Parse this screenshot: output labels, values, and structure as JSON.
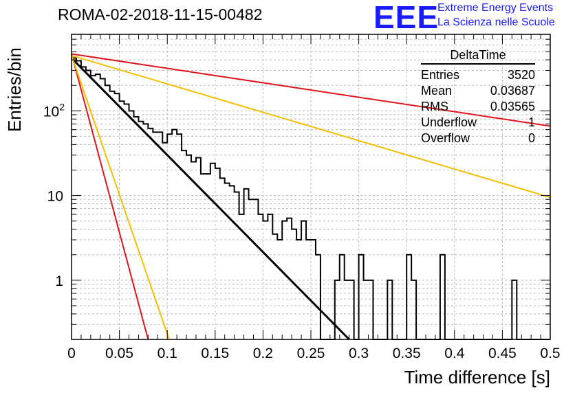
{
  "title": "ROMA-02-2018-11-15-00482",
  "logo": {
    "mark": "EEE",
    "line1": "Extreme Energy Events",
    "line2": "La Scienza nelle Scuole"
  },
  "colors": {
    "red": "#e0141a",
    "orange": "#f5be00",
    "black": "#000000",
    "logo": "#1a1aff"
  },
  "stats": {
    "name": "DeltaTime",
    "rows": [
      {
        "label": "Entries",
        "value": "3520"
      },
      {
        "label": "Mean",
        "value": "0.03687"
      },
      {
        "label": "RMS",
        "value": "0.03565"
      },
      {
        "label": "Underflow",
        "value": "1"
      },
      {
        "label": "Overflow",
        "value": "0"
      }
    ]
  },
  "chart_data": {
    "type": "line",
    "xlabel": "Time difference [s]",
    "ylabel": "Entries/bin",
    "xlim": [
      0,
      0.5
    ],
    "ylim": [
      0.2,
      800
    ],
    "log_y": true,
    "grid": true,
    "x_tick_labels": [
      "0",
      "0.05",
      "0.1",
      "0.15",
      "0.2",
      "0.25",
      "0.3",
      "0.35",
      "0.4",
      "0.45",
      "0.5"
    ],
    "y_tick_labels": [
      {
        "value": 1,
        "label": "1"
      },
      {
        "value": 10,
        "label": "10"
      },
      {
        "value": 100,
        "label": "10^2"
      }
    ],
    "histogram": {
      "bin_width": 0.005,
      "values": [
        420,
        390,
        330,
        300,
        260,
        270,
        240,
        200,
        170,
        160,
        130,
        120,
        100,
        85,
        75,
        70,
        62,
        56,
        56,
        42,
        53,
        60,
        53,
        34,
        30,
        25,
        28,
        18,
        18,
        24,
        21,
        16,
        14,
        13,
        11,
        6,
        12,
        9,
        9,
        6,
        5,
        6,
        3.5,
        3,
        5,
        5.4,
        4,
        3,
        5,
        3,
        3,
        2,
        0,
        0,
        0,
        1,
        2,
        1,
        1,
        0,
        2,
        1,
        1,
        0,
        0,
        0,
        1,
        0,
        0,
        0,
        2,
        1,
        0,
        0,
        0,
        0,
        0,
        2,
        0,
        0,
        0,
        0,
        0,
        0,
        0,
        0,
        0,
        0,
        0,
        0,
        0,
        0,
        1,
        0,
        0,
        0,
        0,
        0,
        0,
        0
      ]
    },
    "series": [
      {
        "color": "black",
        "x": [
          0.0,
          0.29
        ],
        "y": [
          420,
          0.2
        ]
      },
      {
        "color": "red",
        "x": [
          0.0,
          0.5
        ],
        "y": [
          470,
          66
        ]
      },
      {
        "color": "red",
        "x": [
          0.0,
          0.08
        ],
        "y": [
          470,
          0.2
        ]
      },
      {
        "color": "orange",
        "x": [
          0.0,
          0.5
        ],
        "y": [
          450,
          9.5
        ]
      },
      {
        "color": "orange",
        "x": [
          0.0,
          0.102
        ],
        "y": [
          450,
          0.2
        ]
      }
    ]
  }
}
